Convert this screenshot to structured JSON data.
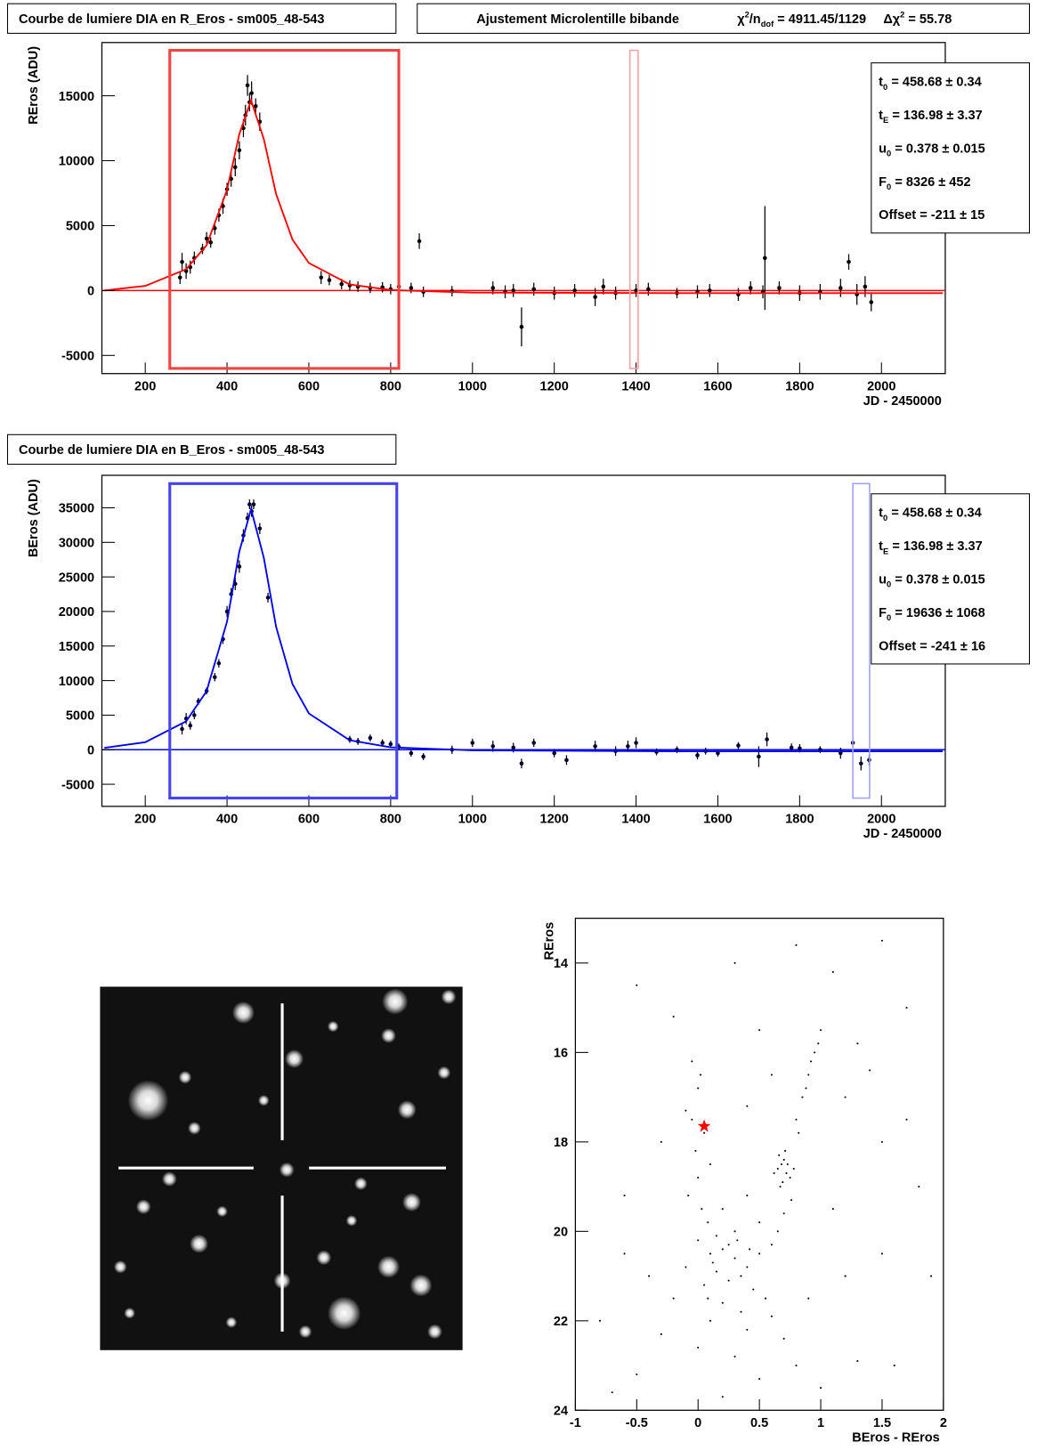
{
  "chart_data": [
    {
      "type": "scatter",
      "title": "Courbe de lumiere DIA en R_Eros - sm005_48-543",
      "fit_title": [
        [
          {
            "text": "Ajustement Microlentille bibande"
          }
        ],
        [
          {
            "text": "χ"
          },
          {
            "text": "2",
            "pos": "sup"
          },
          {
            "text": "/n"
          },
          {
            "text": "dof",
            "pos": "sub"
          },
          {
            "text": " = 4911.45/1129"
          }
        ],
        [
          {
            "text": "Δχ"
          },
          {
            "text": "2",
            "pos": "sup"
          },
          {
            "text": " = 55.78"
          }
        ]
      ],
      "fit_params": [
        {
          "symbol": "t",
          "sub": "0",
          "text": "= 458.68 ± 0.34"
        },
        {
          "symbol": "t",
          "sub": "E",
          "text": "= 136.98 ± 3.37"
        },
        {
          "symbol": "u",
          "sub": "0",
          "text": "= 0.378 ± 0.015"
        },
        {
          "symbol": "F",
          "sub": "0",
          "text": "= 8326 ± 452"
        },
        {
          "symbol": "Offset",
          "text": "= -211 ± 15"
        }
      ],
      "ylabel": "REros (ADU)",
      "xlabel": "JD - 2450000",
      "xlim": [
        94,
        2156
      ],
      "ylim": [
        -6400,
        19100
      ],
      "xticks": [
        200,
        400,
        600,
        800,
        1000,
        1200,
        1400,
        1600,
        1800,
        2000
      ],
      "yticks": [
        -5000,
        0,
        5000,
        10000,
        15000
      ],
      "color": "#000000",
      "x": [
        285,
        290,
        300,
        310,
        320,
        340,
        350,
        360,
        370,
        380,
        390,
        400,
        410,
        420,
        430,
        440,
        445,
        450,
        455,
        460,
        470,
        480,
        630,
        650,
        680,
        700,
        720,
        750,
        780,
        800,
        820,
        850,
        870,
        880,
        950,
        1050,
        1080,
        1100,
        1120,
        1150,
        1200,
        1250,
        1300,
        1320,
        1350,
        1400,
        1430,
        1500,
        1550,
        1580,
        1650,
        1680,
        1710,
        1715,
        1750,
        1800,
        1850,
        1900,
        1920,
        1940,
        1960,
        1975
      ],
      "values": [
        1000,
        2200,
        1500,
        1800,
        2500,
        3200,
        4000,
        3700,
        4800,
        5800,
        6500,
        7800,
        8600,
        9500,
        10800,
        12500,
        13500,
        15800,
        14500,
        15200,
        14200,
        13000,
        1000,
        800,
        500,
        400,
        300,
        200,
        250,
        100,
        300,
        200,
        3800,
        -100,
        -50,
        200,
        -100,
        0,
        -2800,
        100,
        -200,
        0,
        -500,
        300,
        -200,
        0,
        100,
        -200,
        -100,
        0,
        -300,
        200,
        -100,
        2500,
        200,
        -200,
        -100,
        200,
        2200,
        -300,
        300,
        -900
      ],
      "errors": [
        500,
        700,
        600,
        500,
        500,
        400,
        500,
        400,
        500,
        500,
        600,
        500,
        600,
        700,
        700,
        700,
        800,
        800,
        700,
        900,
        600,
        700,
        500,
        400,
        400,
        400,
        400,
        400,
        400,
        400,
        400,
        400,
        600,
        400,
        400,
        500,
        500,
        500,
        1500,
        500,
        500,
        500,
        700,
        600,
        500,
        500,
        500,
        400,
        500,
        500,
        500,
        500,
        500,
        4000,
        500,
        600,
        600,
        700,
        600,
        800,
        800,
        700
      ],
      "fit": {
        "color": "#ff0000",
        "x": [
          100,
          200,
          300,
          350,
          400,
          430,
          458.68,
          490,
          520,
          560,
          600,
          700,
          800,
          1000,
          1500,
          2150
        ],
        "values": [
          4,
          351,
          1634,
          3486,
          7745,
          12051,
          14650,
          11665,
          7428,
          3922,
          2117,
          470,
          39,
          -160,
          -200,
          -205
        ]
      },
      "regions": [
        {
          "x": [
            260,
            820
          ],
          "y": [
            -6000,
            18500
          ],
          "color": "#ee4444"
        },
        {
          "x": [
            1385,
            1405
          ],
          "y": [
            -6000,
            18500
          ],
          "color": "#f5a0a0"
        }
      ]
    },
    {
      "type": "scatter",
      "title": "Courbe de lumiere DIA en B_Eros - sm005_48-543",
      "fit_params": [
        {
          "symbol": "t",
          "sub": "0",
          "text": "= 458.68 ± 0.34"
        },
        {
          "symbol": "t",
          "sub": "E",
          "text": "= 136.98 ± 3.37"
        },
        {
          "symbol": "u",
          "sub": "0",
          "text": "= 0.378 ± 0.015"
        },
        {
          "symbol": "F",
          "sub": "0",
          "text": "= 19636 ± 1068"
        },
        {
          "symbol": "Offset",
          "text": "= -241 ± 16"
        }
      ],
      "ylabel": "BEros (ADU)",
      "xlabel": "JD - 2450000",
      "xlim": [
        94,
        2156
      ],
      "ylim": [
        -8200,
        39700
      ],
      "xticks": [
        200,
        400,
        600,
        800,
        1000,
        1200,
        1400,
        1600,
        1800,
        2000
      ],
      "yticks": [
        -5000,
        0,
        5000,
        10000,
        15000,
        20000,
        25000,
        30000,
        35000
      ],
      "color": "#000033",
      "x": [
        290,
        300,
        310,
        320,
        330,
        350,
        370,
        380,
        390,
        400,
        410,
        420,
        430,
        440,
        450,
        455,
        460,
        465,
        480,
        500,
        700,
        720,
        750,
        780,
        800,
        820,
        850,
        880,
        950,
        1000,
        1050,
        1100,
        1120,
        1150,
        1200,
        1230,
        1300,
        1350,
        1380,
        1400,
        1450,
        1500,
        1550,
        1570,
        1600,
        1650,
        1700,
        1720,
        1780,
        1800,
        1850,
        1900,
        1930,
        1950,
        1970
      ],
      "values": [
        3000,
        4500,
        3500,
        5000,
        7000,
        8500,
        10500,
        12500,
        16000,
        20000,
        22500,
        24000,
        26500,
        31000,
        33500,
        35500,
        34500,
        35500,
        32000,
        22000,
        1500,
        1200,
        1700,
        1000,
        800,
        400,
        -500,
        -1000,
        0,
        1000,
        500,
        300,
        -2000,
        1000,
        -500,
        -1500,
        500,
        -200,
        500,
        1000,
        -300,
        0,
        -800,
        -200,
        -500,
        600,
        -1000,
        1500,
        300,
        200,
        0,
        -500,
        1000,
        -2000,
        -1500
      ],
      "errors": [
        800,
        800,
        600,
        600,
        500,
        500,
        600,
        600,
        700,
        800,
        900,
        900,
        900,
        900,
        800,
        700,
        800,
        700,
        800,
        700,
        500,
        500,
        500,
        500,
        500,
        500,
        500,
        500,
        600,
        600,
        800,
        700,
        700,
        600,
        600,
        700,
        800,
        700,
        800,
        800,
        500,
        500,
        600,
        500,
        500,
        500,
        1500,
        1000,
        600,
        600,
        500,
        800,
        800,
        1000,
        800
      ],
      "fit": {
        "color": "#0000ee",
        "x": [
          100,
          200,
          300,
          350,
          400,
          430,
          458.68,
          490,
          520,
          560,
          600,
          700,
          800,
          1000,
          1500,
          2150
        ],
        "values": [
          266,
          1084,
          4110,
          8477,
          18524,
          28675,
          34809,
          27766,
          17774,
          9506,
          5250,
          1365,
          348,
          -90,
          -220,
          -235
        ]
      },
      "regions": [
        {
          "x": [
            260,
            815
          ],
          "y": [
            -7000,
            38500
          ],
          "color": "#4444ee"
        },
        {
          "x": [
            1930,
            1971
          ],
          "y": [
            -7000,
            38500
          ],
          "color": "#a0a0f5"
        }
      ]
    },
    {
      "type": "scatter",
      "xlabel": "BEros - REros",
      "ylabel": "REros",
      "xlim": [
        -1,
        2
      ],
      "ylim": [
        24,
        13
      ],
      "xticks": [
        -1,
        -0.5,
        0,
        0.5,
        1,
        1.5,
        2
      ],
      "yticks": [
        14,
        16,
        18,
        20,
        22,
        24
      ],
      "color": "#000000",
      "x": [
        0.68,
        0.72,
        0.65,
        0.7,
        0.75,
        0.66,
        0.73,
        0.69,
        0.62,
        0.78,
        0.71,
        0.67,
        0.8,
        0.85,
        0.9,
        0.95,
        1.0,
        0.88,
        0.82,
        0.92,
        0.98,
        0.76,
        0.7,
        0.65,
        0.6,
        -0.05,
        0.0,
        -0.1,
        0.05,
        -0.02,
        0.0,
        -0.08,
        0.03,
        0.08,
        -0.05,
        0.02,
        0.1,
        0.0,
        0.1,
        0.2,
        0.3,
        0.4,
        0.5,
        0.15,
        0.25,
        0.35,
        0.45,
        0.05,
        -0.1,
        0.55,
        0.2,
        0.35,
        0.6,
        -0.2,
        0.1,
        0.4,
        0.7,
        -0.3,
        0.0,
        0.3,
        0.8,
        -0.5,
        0.5,
        1.0,
        -0.7,
        0.2,
        1.3,
        0.9,
        1.2,
        -0.4,
        0.3,
        0.5,
        0.2,
        0.4,
        1.5,
        1.8,
        -0.8,
        -0.6,
        1.1,
        0.15,
        0.25,
        0.12,
        0.32,
        0.08,
        0.42,
        -0.5,
        0.3,
        1.5,
        1.7,
        0.5,
        1.2,
        1.5,
        -0.3,
        1.9,
        1.6,
        0.6,
        1.3,
        0.4,
        0.8,
        1.1,
        -0.2,
        1.4,
        1.7,
        -0.6
      ],
      "values": [
        18.5,
        18.7,
        18.6,
        18.4,
        18.8,
        18.3,
        18.5,
        18.9,
        18.7,
        18.6,
        18.2,
        19.0,
        17.5,
        17.0,
        16.5,
        16.0,
        15.5,
        16.8,
        17.8,
        16.2,
        15.8,
        19.3,
        19.6,
        20.0,
        20.3,
        16.2,
        16.8,
        17.3,
        17.8,
        18.2,
        18.8,
        19.2,
        19.5,
        19.8,
        17.5,
        16.5,
        18.5,
        20.2,
        20.5,
        20.4,
        20.6,
        20.8,
        20.5,
        20.9,
        21.1,
        21.0,
        21.3,
        21.2,
        20.8,
        21.5,
        21.6,
        21.8,
        21.9,
        21.5,
        22.0,
        22.2,
        22.4,
        22.3,
        22.6,
        22.8,
        23.0,
        23.2,
        23.3,
        23.5,
        23.6,
        23.7,
        22.9,
        21.5,
        21.0,
        21.0,
        20.0,
        19.8,
        19.5,
        19.2,
        20.5,
        19.0,
        22.0,
        20.5,
        19.5,
        20.1,
        20.3,
        20.7,
        20.2,
        21.5,
        20.4,
        14.5,
        14.0,
        13.5,
        15.0,
        15.5,
        17.0,
        18.0,
        18.0,
        21.0,
        23.0,
        16.5,
        15.8,
        17.2,
        13.6,
        14.2,
        15.2,
        16.4,
        17.5,
        19.2
      ],
      "highlight": {
        "x": 0.05,
        "y": 17.65,
        "color": "#ff0000"
      }
    }
  ]
}
